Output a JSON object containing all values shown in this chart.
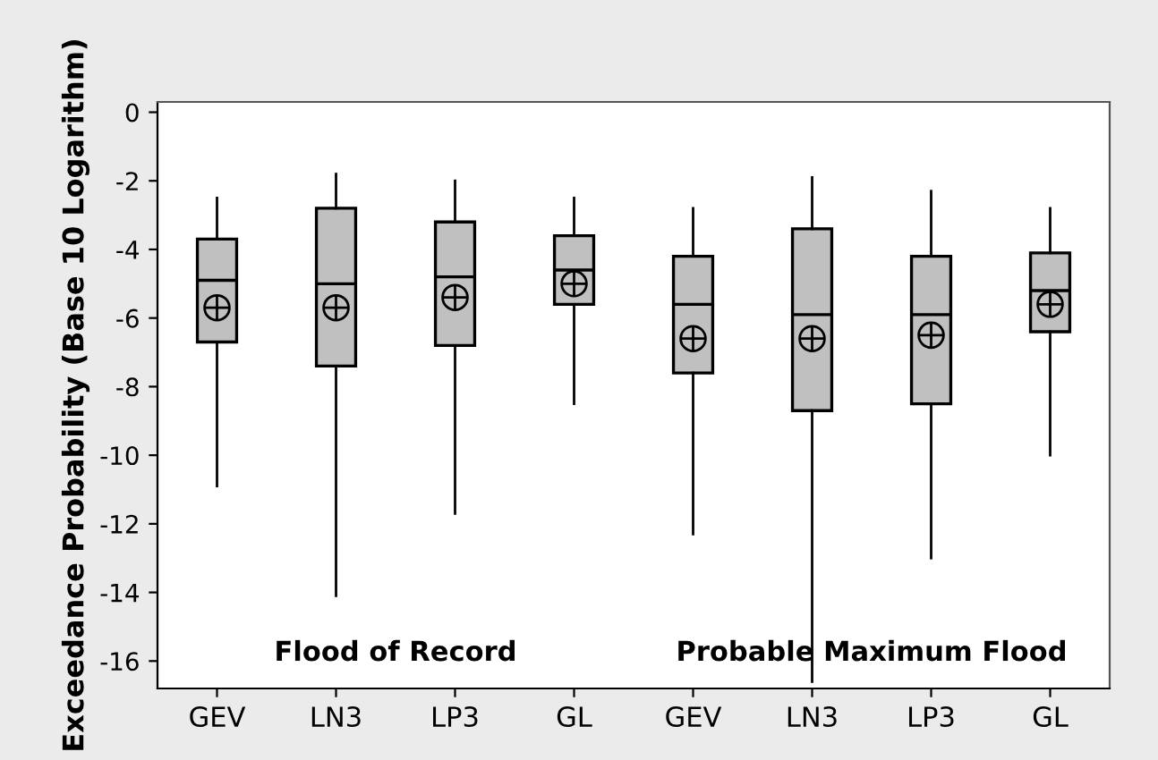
{
  "chart_data": {
    "type": "box",
    "ylabel": "Exceedance Probability (Base 10 Logarithm)",
    "categories": [
      "GEV",
      "LN3",
      "LP3",
      "GL",
      "GEV",
      "LN3",
      "LP3",
      "GL"
    ],
    "boxes": [
      {
        "low": -10.9,
        "q1": -6.7,
        "median": -4.9,
        "q3": -3.7,
        "high": -2.5,
        "mean": -5.7
      },
      {
        "low": -14.1,
        "q1": -7.4,
        "median": -5.0,
        "q3": -2.8,
        "high": -1.8,
        "mean": -5.7
      },
      {
        "low": -11.7,
        "q1": -6.8,
        "median": -4.8,
        "q3": -3.2,
        "high": -2.0,
        "mean": -5.4
      },
      {
        "low": -8.5,
        "q1": -5.6,
        "median": -4.6,
        "q3": -3.6,
        "high": -2.5,
        "mean": -5.0
      },
      {
        "low": -12.3,
        "q1": -7.6,
        "median": -5.6,
        "q3": -4.2,
        "high": -2.8,
        "mean": -6.6
      },
      {
        "low": -16.6,
        "q1": -8.7,
        "median": -5.9,
        "q3": -3.4,
        "high": -1.9,
        "mean": -6.6
      },
      {
        "low": -13.0,
        "q1": -8.5,
        "median": -5.9,
        "q3": -4.2,
        "high": -2.3,
        "mean": -6.5
      },
      {
        "low": -10.0,
        "q1": -6.4,
        "median": -5.2,
        "q3": -4.1,
        "high": -2.8,
        "mean": -5.6
      }
    ],
    "color": "#c0c0c0",
    "ylim": [
      -16.8,
      0.3
    ],
    "yticks": [
      {
        "value": 0,
        "label": "0"
      },
      {
        "value": -2,
        "label": "-2"
      },
      {
        "value": -4,
        "label": "-4"
      },
      {
        "value": -6,
        "label": "-6"
      },
      {
        "value": -8,
        "label": "-8"
      },
      {
        "value": -10,
        "label": "-10"
      },
      {
        "value": -12,
        "label": "-12"
      },
      {
        "value": -14,
        "label": "-14"
      },
      {
        "value": -16,
        "label": "-16"
      }
    ],
    "annotations": [
      "Flood of Record",
      "Probable Maximum Flood"
    ],
    "grid": false,
    "legend": false
  }
}
